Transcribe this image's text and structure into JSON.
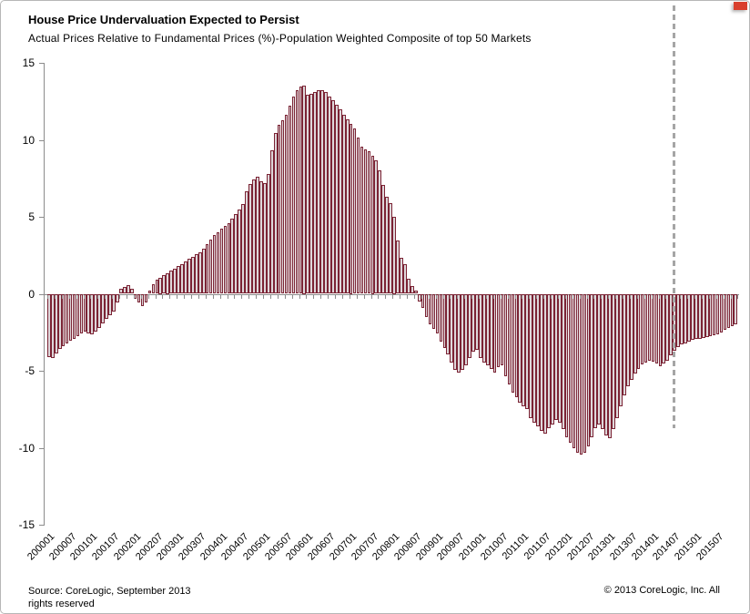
{
  "header": {
    "title": "House Price Undervaluation Expected to Persist",
    "subtitle": "Actual Prices Relative to Fundamental Prices (%)-Population Weighted Composite of top 50 Markets"
  },
  "footer": {
    "source_line1": "Source: CoreLogic, September 2013",
    "source_line2": "rights reserved",
    "copyright": "© 2013 CoreLogic, Inc.  All"
  },
  "colors": {
    "bar_border": "#7B2334",
    "bar_fill": "#DED7DA",
    "axis": "#8C8C8C",
    "forecast_line": "#A5A5A5",
    "red_fragment": "#D9402E"
  },
  "chart_data": {
    "type": "bar",
    "title": "House Price Undervaluation Expected to Persist",
    "subtitle": "Actual Prices Relative to Fundamental Prices (%)-Population Weighted Composite of top 50 Markets",
    "ylabel": "",
    "xlabel": "",
    "ylim": [
      -15,
      15
    ],
    "y_ticks": [
      15,
      10,
      5,
      0,
      -5,
      -10,
      -15
    ],
    "grid": false,
    "legend": "none",
    "x_start_month": "200001",
    "x_end_month": "201512",
    "x_tick_labels": [
      "200001",
      "200007",
      "200101",
      "200107",
      "200201",
      "200207",
      "200301",
      "200307",
      "200401",
      "200407",
      "200501",
      "200507",
      "200601",
      "200607",
      "200701",
      "200707",
      "200801",
      "200807",
      "200901",
      "200907",
      "201001",
      "201007",
      "201101",
      "201107",
      "201201",
      "201207",
      "201301",
      "201307",
      "201401",
      "201407",
      "201501",
      "201507"
    ],
    "forecast_line_month": "201407",
    "series": [
      {
        "name": "Actual Prices Relative to Fundamental Prices (%)",
        "values": [
          -4.1,
          -4.2,
          -3.9,
          -3.6,
          -3.4,
          -3.2,
          -3.05,
          -2.9,
          -2.75,
          -2.55,
          -2.45,
          -2.55,
          -2.65,
          -2.45,
          -2.2,
          -1.95,
          -1.65,
          -1.4,
          -1.15,
          -0.55,
          0.3,
          0.45,
          0.55,
          0.35,
          -0.3,
          -0.55,
          -0.8,
          -0.55,
          0.2,
          0.6,
          0.9,
          1.05,
          1.2,
          1.35,
          1.5,
          1.65,
          1.8,
          1.95,
          2.1,
          2.25,
          2.4,
          2.55,
          2.7,
          2.9,
          3.2,
          3.5,
          3.8,
          4.0,
          4.25,
          4.4,
          4.6,
          4.9,
          5.2,
          5.5,
          5.85,
          6.65,
          7.15,
          7.4,
          7.6,
          7.3,
          7.2,
          7.8,
          9.3,
          10.45,
          10.95,
          11.25,
          11.6,
          12.2,
          12.8,
          13.2,
          13.45,
          13.55,
          12.95,
          13.0,
          13.1,
          13.2,
          13.25,
          13.1,
          12.8,
          12.55,
          12.3,
          12.0,
          11.65,
          11.35,
          11.05,
          10.75,
          10.15,
          9.55,
          9.4,
          9.25,
          8.95,
          8.65,
          8.0,
          7.1,
          6.3,
          5.9,
          5.0,
          3.45,
          2.35,
          1.95,
          1.0,
          0.5,
          0.2,
          -0.5,
          -0.9,
          -1.5,
          -2.0,
          -2.3,
          -2.6,
          -3.1,
          -3.55,
          -3.95,
          -4.45,
          -4.95,
          -5.1,
          -4.95,
          -4.65,
          -4.15,
          -3.75,
          -3.65,
          -4.15,
          -4.45,
          -4.65,
          -4.9,
          -5.1,
          -4.75,
          -4.65,
          -5.35,
          -5.9,
          -6.4,
          -6.7,
          -7.05,
          -7.3,
          -7.5,
          -8.1,
          -8.4,
          -8.6,
          -8.9,
          -9.1,
          -8.7,
          -8.5,
          -8.2,
          -8.4,
          -8.8,
          -9.3,
          -9.7,
          -10.0,
          -10.3,
          -10.45,
          -10.3,
          -9.9,
          -9.3,
          -8.7,
          -8.5,
          -8.8,
          -9.2,
          -9.35,
          -8.8,
          -8.05,
          -7.3,
          -6.6,
          -6.0,
          -5.6,
          -5.2,
          -4.9,
          -4.6,
          -4.45,
          -4.35,
          -4.4,
          -4.55,
          -4.7,
          -4.55,
          -4.35,
          -4.0,
          -3.7,
          -3.45,
          -3.3,
          -3.2,
          -3.1,
          -3.0,
          -2.95,
          -2.9,
          -2.85,
          -2.8,
          -2.75,
          -2.7,
          -2.65,
          -2.5,
          -2.35,
          -2.2,
          -2.1,
          -2.0
        ]
      }
    ]
  },
  "layout_note": ""
}
